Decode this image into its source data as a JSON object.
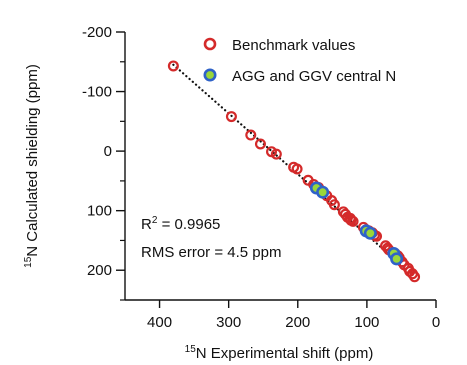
{
  "chart_data": {
    "type": "scatter",
    "title": "",
    "xlabel": {
      "sup": "15",
      "text": "N Experimental shift (ppm)"
    },
    "ylabel": {
      "sup": "15",
      "text": "N Calculated shielding (ppm)"
    },
    "x_reversed": true,
    "y_reversed": true,
    "xlim": [
      450,
      0
    ],
    "ylim": [
      -200,
      250
    ],
    "xticks": [
      400,
      300,
      200,
      100,
      0
    ],
    "xtick_labels": [
      "400",
      "300",
      "200",
      "100",
      "0"
    ],
    "yticks": [
      -200,
      -100,
      0,
      100,
      200
    ],
    "ytick_labels": [
      "-200",
      "-100",
      "0",
      "100",
      "200"
    ],
    "y_minor_ticks": [
      -150,
      -50,
      50,
      150,
      250
    ],
    "grid": false,
    "legend": {
      "position": "top-right",
      "entries": [
        "Benchmark values",
        "AGG and GGV central N"
      ]
    },
    "annotations": [
      {
        "text_parts": [
          "R",
          "2",
          " = 0.9965"
        ]
      },
      {
        "text": "RMS error = 4.5 ppm"
      }
    ],
    "trend_line": {
      "style": "dotted",
      "color": "#111111",
      "points": [
        [
          380,
          -145
        ],
        [
          30,
          212
        ]
      ]
    },
    "series": [
      {
        "name": "Benchmark values",
        "marker": "open-circle",
        "color": "#d42a2a",
        "points": [
          [
            380,
            -143
          ],
          [
            296,
            -58
          ],
          [
            268,
            -27
          ],
          [
            254,
            -12
          ],
          [
            238,
            1
          ],
          [
            231,
            5
          ],
          [
            206,
            27
          ],
          [
            201,
            30
          ],
          [
            185,
            49
          ],
          [
            177,
            56
          ],
          [
            170,
            61
          ],
          [
            163,
            69
          ],
          [
            158,
            75
          ],
          [
            151,
            83
          ],
          [
            147,
            90
          ],
          [
            134,
            102
          ],
          [
            131,
            106
          ],
          [
            128,
            111
          ],
          [
            124,
            113
          ],
          [
            123,
            116
          ],
          [
            120,
            118
          ],
          [
            105,
            128
          ],
          [
            101,
            132
          ],
          [
            97,
            134
          ],
          [
            92,
            137
          ],
          [
            89,
            141
          ],
          [
            86,
            143
          ],
          [
            73,
            159
          ],
          [
            70,
            163
          ],
          [
            68,
            166
          ],
          [
            59,
            172
          ],
          [
            55,
            176
          ],
          [
            53,
            179
          ],
          [
            49,
            186
          ],
          [
            46,
            191
          ],
          [
            40,
            197
          ],
          [
            38,
            202
          ],
          [
            34,
            206
          ],
          [
            31,
            211
          ]
        ]
      },
      {
        "name": "AGG and GGV central N",
        "marker": "filled-circle",
        "color": "#9ad63a",
        "edge_color": "#2f62c8",
        "points": [
          [
            173,
            62
          ],
          [
            164,
            69
          ],
          [
            101,
            134
          ],
          [
            95,
            138
          ],
          [
            61,
            172
          ],
          [
            57,
            181
          ]
        ]
      }
    ]
  },
  "colors": {
    "benchmark": "#d42a2a",
    "agg_fill": "#9ad63a",
    "agg_edge": "#2f62c8",
    "axis": "#111111"
  }
}
